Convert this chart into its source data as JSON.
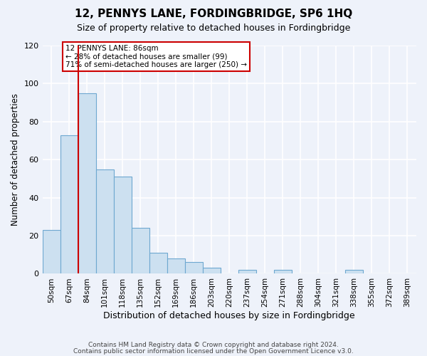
{
  "title": "12, PENNYS LANE, FORDINGBRIDGE, SP6 1HQ",
  "subtitle": "Size of property relative to detached houses in Fordingbridge",
  "xlabel": "Distribution of detached houses by size in Fordingbridge",
  "ylabel": "Number of detached properties",
  "bar_labels": [
    "50sqm",
    "67sqm",
    "84sqm",
    "101sqm",
    "118sqm",
    "135sqm",
    "152sqm",
    "169sqm",
    "186sqm",
    "203sqm",
    "220sqm",
    "237sqm",
    "254sqm",
    "271sqm",
    "288sqm",
    "304sqm",
    "321sqm",
    "338sqm",
    "355sqm",
    "372sqm",
    "389sqm"
  ],
  "bar_values": [
    23,
    73,
    95,
    55,
    51,
    24,
    11,
    8,
    6,
    3,
    0,
    2,
    0,
    2,
    0,
    0,
    0,
    2,
    0,
    0,
    0
  ],
  "bar_color": "#cce0f0",
  "bar_edge_color": "#6ea8d0",
  "property_line_index": 2,
  "property_line_color": "#cc0000",
  "annotation_title": "12 PENNYS LANE: 86sqm",
  "annotation_line1": "← 28% of detached houses are smaller (99)",
  "annotation_line2": "71% of semi-detached houses are larger (250) →",
  "annotation_box_color": "#ffffff",
  "annotation_box_edge": "#cc0000",
  "ylim": [
    0,
    120
  ],
  "yticks": [
    0,
    20,
    40,
    60,
    80,
    100,
    120
  ],
  "footer1": "Contains HM Land Registry data © Crown copyright and database right 2024.",
  "footer2": "Contains public sector information licensed under the Open Government Licence v3.0.",
  "background_color": "#eef2fa",
  "grid_color": "#ffffff"
}
